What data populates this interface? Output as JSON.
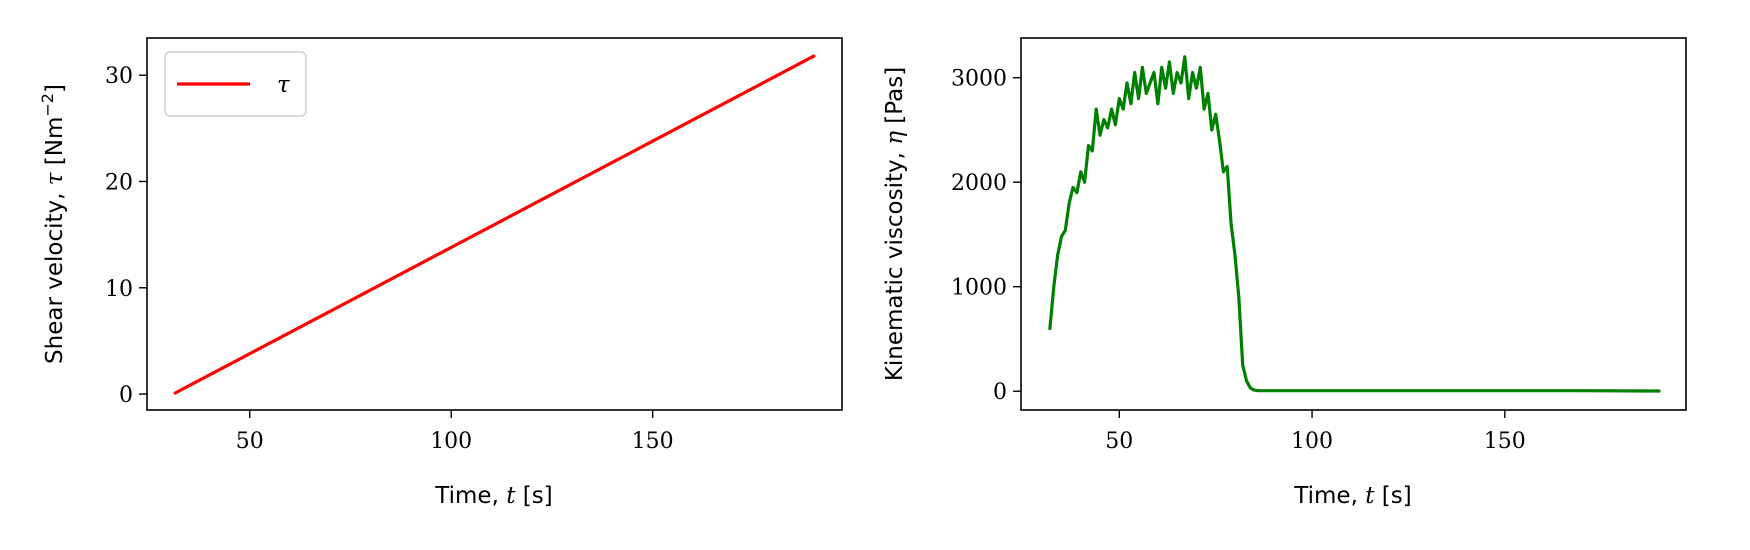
{
  "chart_data": [
    {
      "type": "line",
      "xlabel": {
        "prefix": "Time, ",
        "var": "t",
        "suffix": " [s]"
      },
      "ylabel": {
        "prefix": "Shear velocity, ",
        "var": "τ",
        "suffix": " [Nm",
        "sup": "−2",
        "end": "]"
      },
      "xlim": [
        24.5,
        197
      ],
      "ylim": [
        -1.5,
        33.5
      ],
      "xticks": [
        50,
        100,
        150
      ],
      "yticks": [
        0,
        10,
        20,
        30
      ],
      "legend": {
        "position": "upper-left",
        "entries": [
          "τ"
        ]
      },
      "series": [
        {
          "name": "τ",
          "color": "#ff0000",
          "x": [
            31.5,
            190
          ],
          "y": [
            0.1,
            31.8
          ]
        }
      ]
    },
    {
      "type": "line",
      "xlabel": {
        "prefix": "Time, ",
        "var": "t",
        "suffix": " [s]"
      },
      "ylabel": {
        "prefix": "Kinematic viscosity, ",
        "var": "η",
        "suffix": " [Pas]"
      },
      "xlim": [
        24.5,
        197
      ],
      "ylim": [
        -180,
        3380
      ],
      "xticks": [
        50,
        100,
        150
      ],
      "yticks": [
        0,
        1000,
        2000,
        3000
      ],
      "series": [
        {
          "color": "#008000",
          "x": [
            32,
            33,
            34,
            35,
            36,
            37,
            38,
            39,
            40,
            41,
            42,
            43,
            44,
            45,
            46,
            47,
            48,
            49,
            50,
            51,
            52,
            53,
            54,
            55,
            56,
            57,
            58,
            59,
            60,
            61,
            62,
            63,
            64,
            65,
            66,
            67,
            68,
            69,
            70,
            71,
            72,
            73,
            74,
            75,
            76,
            77,
            78,
            79,
            80,
            81,
            82,
            83,
            84,
            85,
            86,
            87,
            88,
            90,
            100,
            120,
            150,
            170,
            190
          ],
          "y": [
            600,
            1000,
            1300,
            1480,
            1540,
            1800,
            1950,
            1900,
            2100,
            2000,
            2350,
            2300,
            2700,
            2450,
            2600,
            2520,
            2700,
            2550,
            2800,
            2700,
            2950,
            2750,
            3050,
            2800,
            3100,
            2850,
            2950,
            3050,
            2750,
            3100,
            2900,
            3150,
            2850,
            3050,
            2950,
            3200,
            2800,
            3050,
            2900,
            3100,
            2700,
            2850,
            2500,
            2650,
            2400,
            2100,
            2150,
            1600,
            1300,
            900,
            250,
            100,
            30,
            10,
            5,
            5,
            5,
            5,
            5,
            5,
            5,
            5,
            2
          ]
        }
      ]
    }
  ]
}
